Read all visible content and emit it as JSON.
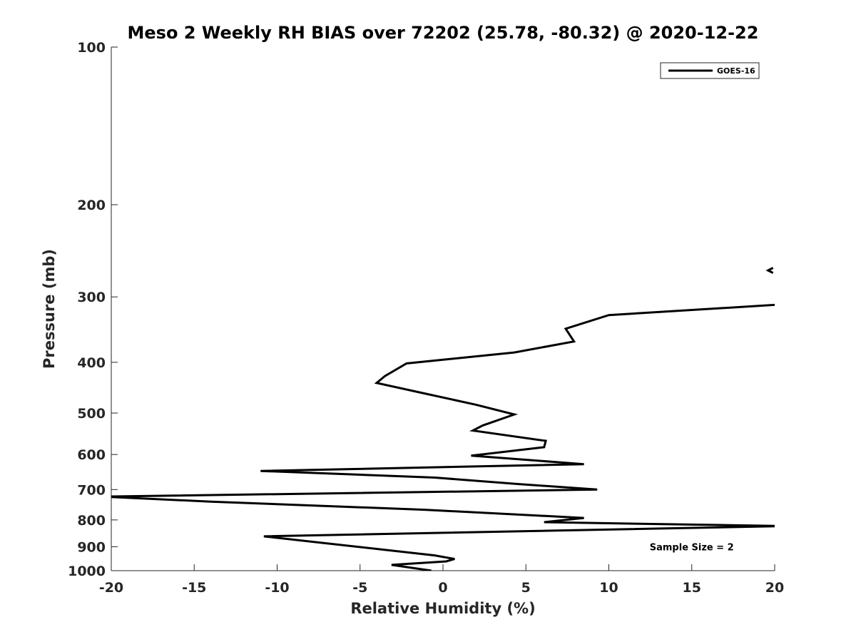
{
  "chart_data": {
    "type": "line",
    "title": "Meso 2 Weekly RH BIAS over 72202 (25.78, -80.32) @ 2020-12-22",
    "xlabel": "Relative Humidity (%)",
    "ylabel": "Pressure (mb)",
    "xlim": [
      -20,
      20
    ],
    "ylim": [
      100,
      1000
    ],
    "y_scale": "log",
    "y_reversed": true,
    "grid": false,
    "x_ticks": [
      -20,
      -15,
      -10,
      -5,
      0,
      5,
      10,
      15,
      20
    ],
    "x_tick_labels": [
      "-20",
      "-15",
      "-10",
      "-5",
      "0",
      "5",
      "10",
      "15",
      "20"
    ],
    "y_ticks": [
      100,
      200,
      300,
      400,
      500,
      600,
      700,
      800,
      900,
      1000
    ],
    "y_tick_labels": [
      "100",
      "200",
      "300",
      "400",
      "500",
      "600",
      "700",
      "800",
      "900",
      "1000"
    ],
    "legend_position": "top-right",
    "line_color": "#000000",
    "series": [
      {
        "name": "GOES-16",
        "points": [
          [
            -0.7,
            1000
          ],
          [
            -3.1,
            975
          ],
          [
            0.2,
            960
          ],
          [
            0.7,
            950
          ],
          [
            -0.5,
            935
          ],
          [
            -10.8,
            860
          ],
          [
            20.5,
            822
          ],
          [
            6.1,
            808
          ],
          [
            8.5,
            793
          ],
          [
            -1.1,
            765
          ],
          [
            -14.0,
            738
          ],
          [
            -20.5,
            722
          ],
          [
            9.3,
            700
          ],
          [
            4.5,
            683
          ],
          [
            -0.5,
            664
          ],
          [
            -11.0,
            645
          ],
          [
            8.5,
            626
          ],
          [
            1.7,
            603
          ],
          [
            6.1,
            581
          ],
          [
            6.2,
            565
          ],
          [
            1.8,
            540
          ],
          [
            2.4,
            528
          ],
          [
            4.3,
            503
          ],
          [
            2.0,
            482
          ],
          [
            -1.2,
            458
          ],
          [
            -4.0,
            438
          ],
          [
            -3.5,
            425
          ],
          [
            -2.2,
            402
          ],
          [
            4.3,
            383
          ],
          [
            7.9,
            365
          ],
          [
            7.4,
            345
          ],
          [
            10.0,
            325
          ],
          [
            20.5,
            310
          ]
        ]
      },
      {
        "name": "",
        "points": [
          [
            19.9,
            270
          ],
          [
            19.6,
            267
          ],
          [
            19.9,
            264
          ]
        ]
      }
    ],
    "annotations": [
      {
        "text": "Sample Size = 2",
        "x": 15,
        "y": 900
      }
    ]
  }
}
